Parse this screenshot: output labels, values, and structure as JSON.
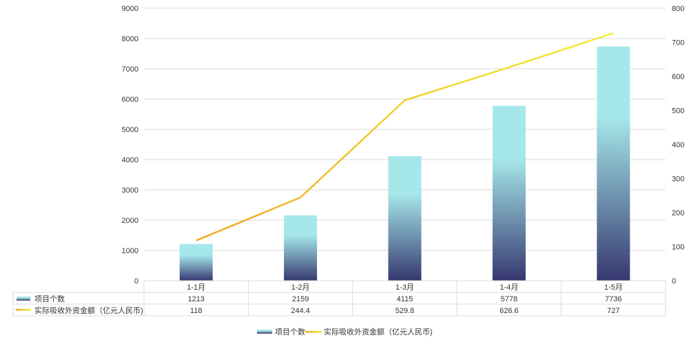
{
  "chart_data": {
    "type": "bar+line",
    "categories": [
      "1-1月",
      "1-2月",
      "1-3月",
      "1-4月",
      "1-5月"
    ],
    "series": [
      {
        "name": "项目个数",
        "type": "bar",
        "axis": "left",
        "values": [
          1213,
          2159,
          4115,
          5778,
          7736
        ],
        "color_top": "#a6e8ea",
        "color_bottom": "#363870"
      },
      {
        "name": "实际吸收外资金额（亿元人民币)",
        "type": "line",
        "axis": "right",
        "values": [
          118,
          244.4,
          529.8,
          626.6,
          727
        ],
        "color_start": "#f0a820",
        "color_end": "#f0ee30"
      }
    ],
    "y_left": {
      "range": [
        0,
        9000
      ],
      "ticks": [
        0,
        1000,
        2000,
        3000,
        4000,
        5000,
        6000,
        7000,
        8000,
        9000
      ]
    },
    "y_right": {
      "range": [
        0,
        800
      ],
      "ticks": [
        0,
        100,
        200,
        300,
        400,
        500,
        600,
        700,
        800
      ]
    },
    "grid": true,
    "data_table": true,
    "legend": "bottom"
  }
}
